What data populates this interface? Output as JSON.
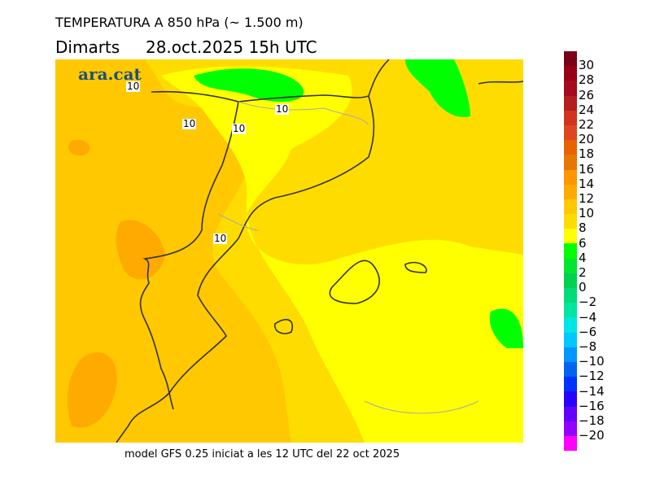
{
  "title": "TEMPERATURA A 850 hPa (~ 1.500 m)",
  "subtitle_day": "Dimarts",
  "subtitle_date": "28.oct.2025 15h UTC",
  "logo": "ara.cat",
  "contour_labels": [
    "10",
    "10",
    "10",
    "10",
    "10"
  ],
  "footer": "model GFS 0.25 iniciat a les 12 UTC del 22 oct 2025",
  "colorbar": {
    "labels": [
      "30",
      "28",
      "26",
      "24",
      "22",
      "20",
      "18",
      "16",
      "14",
      "12",
      "10",
      "8",
      "6",
      "4",
      "2",
      "0",
      "−2",
      "−4",
      "−6",
      "−8",
      "−10",
      "−12",
      "−14",
      "−16",
      "−18",
      "−20"
    ],
    "colors": [
      "#7a0018",
      "#960014",
      "#a50a1e",
      "#b41e1e",
      "#d2321e",
      "#dc4620",
      "#e66400",
      "#e67800",
      "#ff9600",
      "#ffaa00",
      "#ffc800",
      "#ffdc00",
      "#ffff00",
      "#00ff00",
      "#00e632",
      "#00d250",
      "#00dc78",
      "#00e6a0",
      "#00e6e6",
      "#00c8ff",
      "#0096ff",
      "#0064f0",
      "#0032ff",
      "#2800ff",
      "#6400ff",
      "#9600ff",
      "#ff00ff"
    ]
  }
}
